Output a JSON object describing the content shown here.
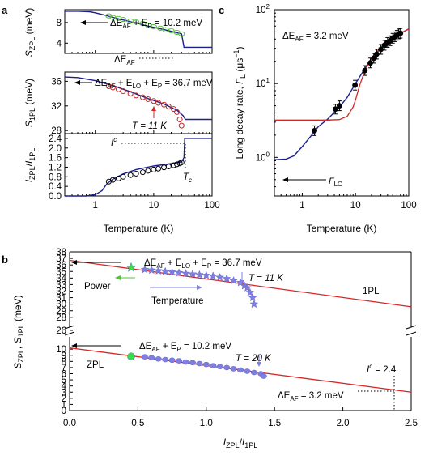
{
  "colors": {
    "fit": "#1c1f8c",
    "red": "#d62728",
    "green_marker": "#55c03a",
    "red_marker": "#c42a2a",
    "black_marker": "#000000",
    "blue_marker": "#7e7fe0",
    "green_point": "#3cdc48"
  },
  "chart_data": [
    {
      "panel": "a",
      "type": "line",
      "title": "",
      "xscale": "log",
      "xlim": [
        0.3,
        100
      ],
      "xticks": [
        "1",
        "10",
        "100"
      ],
      "xlabel": "Temperature (K)",
      "subplots": [
        {
          "ylabel": "S_ZPL (meV)",
          "ylim": [
            2,
            10.5
          ],
          "yticks": [
            "4",
            "8"
          ],
          "annotations": [
            "ΔE_AF + E_P = 10.2 meV",
            "ΔE_AF"
          ],
          "fit": {
            "x": [
              0.3,
              0.5,
              0.8,
              1.0,
              1.5,
              2,
              3,
              5,
              8,
              12,
              20,
              30,
              33,
              100
            ],
            "y": [
              10.2,
              10.2,
              10.1,
              9.9,
              9.4,
              9.0,
              8.5,
              7.9,
              7.3,
              6.9,
              6.3,
              5.8,
              3.2,
              3.2
            ]
          },
          "series": [
            {
              "name": "",
              "marker": "open circle",
              "x": [
                1.7,
                2.0,
                2.5,
                3.0,
                4.0,
                5.0,
                6.5,
                8,
                10,
                13,
                16,
                20,
                25,
                30
              ],
              "y": [
                9.3,
                9.0,
                8.8,
                8.6,
                8.3,
                8.1,
                7.8,
                7.5,
                7.2,
                6.9,
                6.6,
                6.4,
                6.1,
                5.8
              ]
            }
          ]
        },
        {
          "ylabel": "S_1PL (meV)",
          "ylim": [
            27.5,
            37.5
          ],
          "yticks": [
            "28",
            "32",
            "36"
          ],
          "annotations": [
            "ΔE_AF + E_LO + E_P = 36.7 meV",
            "T = 11 K"
          ],
          "fit": {
            "x": [
              0.3,
              0.5,
              1,
              2,
              4,
              8,
              15,
              25,
              32,
              35,
              100
            ],
            "y": [
              36.7,
              36.6,
              36.1,
              35.3,
              34.3,
              33.2,
              32.3,
              31.3,
              30.4,
              29.8,
              29.8
            ]
          },
          "series": [
            {
              "name": "",
              "marker": "open circle",
              "x": [
                1.7,
                2.0,
                2.5,
                3.0,
                4.0,
                5.0,
                6.5,
                8,
                10,
                12,
                15,
                18,
                22,
                25,
                28,
                30
              ],
              "y": [
                35.2,
                35.0,
                34.7,
                34.4,
                34.0,
                33.7,
                33.4,
                33.1,
                32.8,
                32.5,
                32.2,
                31.9,
                31.5,
                31.0,
                29.8,
                28.8
              ]
            }
          ]
        },
        {
          "ylabel": "I_ZPL/I_1PL",
          "ylim": [
            0,
            2.6
          ],
          "yticks": [
            "0.0",
            "0.4",
            "0.8",
            "1.2",
            "1.6",
            "2.0",
            "2.4"
          ],
          "annotations": [
            "I^c",
            "T_c"
          ],
          "fit": {
            "x": [
              0.3,
              0.7,
              1.0,
              1.3,
              1.6,
              2.0,
              3,
              5,
              10,
              20,
              30,
              33,
              34,
              100
            ],
            "y": [
              0.0,
              0.0,
              0.05,
              0.22,
              0.52,
              0.7,
              0.92,
              1.1,
              1.25,
              1.35,
              1.42,
              1.6,
              2.4,
              2.4
            ]
          },
          "series": [
            {
              "name": "",
              "marker": "open circle",
              "x": [
                1.7,
                2.0,
                2.5,
                3.0,
                4.0,
                5.0,
                6.5,
                8,
                10,
                12,
                15,
                18,
                22,
                25,
                28,
                30
              ],
              "y": [
                0.6,
                0.67,
                0.73,
                0.8,
                0.87,
                0.93,
                0.99,
                1.05,
                1.1,
                1.14,
                1.19,
                1.23,
                1.28,
                1.32,
                1.36,
                1.4
              ]
            }
          ]
        }
      ]
    },
    {
      "panel": "c",
      "type": "line",
      "title": "",
      "xscale": "log",
      "yscale": "log",
      "xlim": [
        0.3,
        100
      ],
      "ylim": [
        0.3,
        100
      ],
      "xticks": [
        "1",
        "10",
        "100"
      ],
      "yticks": [
        "10^0",
        "10^1",
        "10^2"
      ],
      "xlabel": "Temperature (K)",
      "ylabel": "Long decay rate, Γ_L (μs^-1)",
      "annotations": [
        "ΔE_AF = 3.2 meV",
        "Γ_LO"
      ],
      "series": [
        {
          "name": "",
          "color": "blue",
          "x": [
            0.3,
            0.5,
            0.7,
            1.0,
            1.5,
            2.0,
            3.0,
            5.0,
            7.0,
            10,
            15,
            20,
            30,
            50,
            100
          ],
          "y": [
            0.93,
            0.95,
            1.05,
            1.4,
            2.0,
            2.6,
            3.3,
            4.8,
            6.5,
            10,
            16,
            22,
            30,
            42,
            55
          ]
        },
        {
          "name": "",
          "color": "red",
          "x": [
            0.3,
            3.0,
            5.0,
            7.0,
            9.0,
            10,
            12,
            15,
            20,
            30,
            50,
            100
          ],
          "y": [
            3.2,
            3.2,
            3.25,
            3.6,
            4.8,
            6.0,
            9.5,
            15,
            22,
            31,
            42,
            55
          ]
        },
        {
          "name": "",
          "marker": "filled circle with error bars",
          "x": [
            1.7,
            4.2,
            5.0,
            9.8,
            15,
            19,
            22,
            25,
            30,
            35,
            40,
            45,
            50,
            55,
            60,
            65,
            70
          ],
          "y": [
            2.3,
            4.5,
            5.0,
            9.5,
            15,
            19,
            22,
            25,
            29,
            33,
            36,
            38,
            41,
            43,
            45,
            47,
            48
          ]
        }
      ]
    },
    {
      "panel": "b",
      "type": "scatter",
      "title": "",
      "xlim": [
        0,
        2.5
      ],
      "xticks": [
        "0.0",
        "0.5",
        "1.0",
        "1.5",
        "2.0",
        "2.5"
      ],
      "xlabel": "I_ZPL/I_1PL",
      "ylabel": "S_ZPL, S_1PL (meV)",
      "y_broken_axis": {
        "lower": [
          0,
          12
        ],
        "upper": [
          26,
          38
        ]
      },
      "yticks_lower": [
        "0",
        "1",
        "2",
        "3",
        "4",
        "5",
        "6",
        "7",
        "8",
        "9",
        "10"
      ],
      "yticks_upper": [
        "26",
        "28",
        "29",
        "30",
        "31",
        "32",
        "33",
        "34",
        "35",
        "36",
        "37",
        "38"
      ],
      "annotations": [
        "ΔE_AF + E_LO + E_P = 36.7 meV",
        "T = 11 K",
        "Power",
        "Temperature",
        "1PL",
        "ΔE_AF + E_P = 10.2 meV",
        "T = 20 K",
        "ZPL",
        "I^c = 2.4",
        "ΔE_AF = 3.2 meV"
      ],
      "lines": [
        {
          "name": "1PL",
          "x": [
            0,
            2.5
          ],
          "y": [
            36.7,
            29.6
          ]
        },
        {
          "name": "ZPL",
          "x": [
            0,
            2.5
          ],
          "y": [
            10.2,
            3.0
          ]
        }
      ],
      "series": [
        {
          "name": "1PL",
          "marker": "star",
          "x": [
            0.45,
            0.55,
            0.6,
            0.65,
            0.7,
            0.75,
            0.8,
            0.85,
            0.9,
            0.95,
            1.0,
            1.05,
            1.1,
            1.15,
            1.2,
            1.25,
            1.28,
            1.3,
            1.32,
            1.34,
            1.35
          ],
          "y": [
            35.6,
            35.3,
            35.2,
            35.1,
            35.0,
            34.9,
            34.8,
            34.7,
            34.6,
            34.5,
            34.4,
            34.3,
            34.1,
            33.9,
            33.6,
            33.3,
            32.8,
            32.5,
            31.8,
            31.0,
            30.0
          ]
        },
        {
          "name": "ZPL",
          "marker": "ellipse",
          "x": [
            0.45,
            0.55,
            0.6,
            0.65,
            0.7,
            0.75,
            0.8,
            0.85,
            0.9,
            0.95,
            1.0,
            1.05,
            1.1,
            1.15,
            1.2,
            1.25,
            1.3,
            1.35,
            1.4,
            1.42
          ],
          "y": [
            8.8,
            8.75,
            8.6,
            8.4,
            8.3,
            8.2,
            8.1,
            7.9,
            7.8,
            7.65,
            7.5,
            7.3,
            7.15,
            7.0,
            6.8,
            6.6,
            6.4,
            6.2,
            6.0,
            5.6
          ]
        }
      ]
    }
  ],
  "labels": {
    "panel_a": "a",
    "panel_b": "b",
    "panel_c": "c",
    "a_xlabel": "Temperature (K)",
    "c_xlabel": "Temperature (K)",
    "b_xlabel": "I_ZPL/I_1PL",
    "a_top_ann_pre": "ΔE",
    "a_top_ann_sub": "AF",
    "a_top_ann_mid": " + E",
    "a_top_ann_sub2": "P",
    "a_top_ann_post": " = 10.2 meV",
    "a_mid_ann_pre": "ΔE",
    "a_mid_ann_sub": "AF",
    "a_mid_ann_mid": " + E",
    "a_mid_ann_sub2": "LO",
    "a_mid_ann_mid2": " + E",
    "a_mid_ann_sub3": "P",
    "a_mid_ann_post": " = 36.7 meV",
    "a_T11": "T = 11 K",
    "a_Ic": "I",
    "a_Ic_sup": "c",
    "a_Tc": "T",
    "a_Tc_sub": "c",
    "a_dEAF": "ΔE",
    "a_dEAF_sub": "AF",
    "c_dEAF": "ΔE",
    "c_dEAF_sub": "AF",
    "c_dEAF_post": " = 3.2 meV",
    "c_gammaLO": "Γ",
    "c_gammaLO_sub": "LO",
    "b_top_ann": "ΔE",
    "b_top_ann_sub": "AF",
    "b_top_ann_mid": " + E",
    "b_top_ann_sub2": "LO",
    "b_top_ann_mid2": " + E",
    "b_top_ann_sub3": "P",
    "b_top_ann_post": " = 36.7 meV",
    "b_T11": "T = 11 K",
    "b_power": "Power",
    "b_temperature": "Temperature",
    "b_1pl": "1PL",
    "b_low_ann": "ΔE",
    "b_low_ann_sub": "AF",
    "b_low_ann_mid": " + E",
    "b_low_ann_sub2": "P",
    "b_low_ann_post": " = 10.2 meV",
    "b_T20": "T = 20 K",
    "b_zpl": "ZPL",
    "b_Ic": "I",
    "b_Ic_sup": "c",
    "b_Ic_post": " = 2.4",
    "b_dEAF": "ΔE",
    "b_dEAF_sub": "AF",
    "b_dEAF_post": " = 3.2 meV"
  }
}
